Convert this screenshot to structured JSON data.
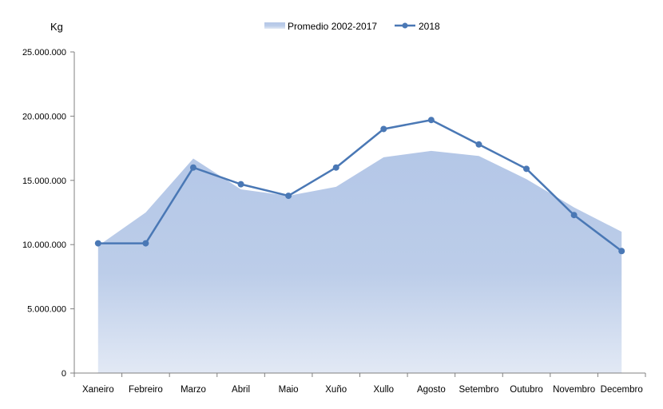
{
  "chart_data": {
    "type": "line",
    "ylabel": "Kg",
    "categories": [
      "Xaneiro",
      "Febreiro",
      "Marzo",
      "Abril",
      "Maio",
      "Xuño",
      "Xullo",
      "Agosto",
      "Setembro",
      "Outubro",
      "Novembro",
      "Decembro"
    ],
    "y_ticks": [
      "0",
      "5.000.000",
      "10.000.000",
      "15.000.000",
      "20.000.000",
      "25.000.000"
    ],
    "y_tick_values": [
      0,
      5000000,
      10000000,
      15000000,
      20000000,
      25000000
    ],
    "ylim": [
      0,
      25000000
    ],
    "legend_position": "top",
    "series": [
      {
        "name": "Promedio 2002-2017",
        "kind": "area",
        "color": "#b4c7e7",
        "values": [
          9900000,
          12500000,
          16700000,
          14300000,
          13800000,
          14500000,
          16800000,
          17300000,
          16900000,
          15100000,
          12900000,
          11000000
        ]
      },
      {
        "name": "2018",
        "kind": "line",
        "color": "#4a78b5",
        "values": [
          10100000,
          10100000,
          16000000,
          14700000,
          13800000,
          16000000,
          19000000,
          19700000,
          17800000,
          15900000,
          12300000,
          9500000
        ]
      }
    ]
  }
}
